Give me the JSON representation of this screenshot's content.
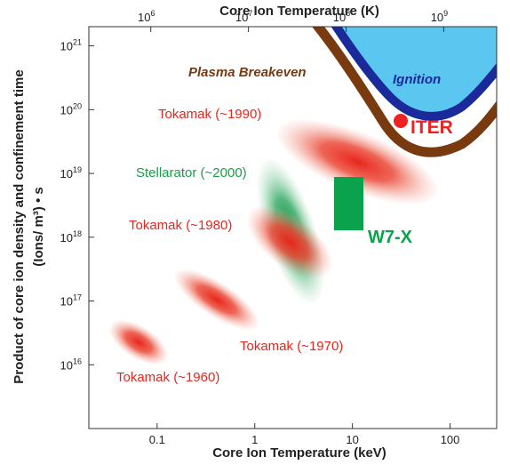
{
  "chart_data": {
    "type": "scatter",
    "title": "",
    "xlabel": "Core Ion Temperature (keV)",
    "x2label": "Core Ion Temperature (K)",
    "ylabel_line1": "Product of core ion density and confinement time",
    "ylabel_line2": "(Ions/ m³) • s",
    "x_scale": "log",
    "y_scale": "log",
    "xlim": [
      0.02,
      300
    ],
    "ylim": [
      1000000000000000.0,
      2e+21
    ],
    "grid": false,
    "x_ticks": [
      {
        "value": 0.1,
        "label": "0.1"
      },
      {
        "value": 1,
        "label": "1"
      },
      {
        "value": 10,
        "label": "10"
      },
      {
        "value": 100,
        "label": "100"
      }
    ],
    "x2_ticks": [
      {
        "value_k": 1000000.0,
        "label_base": "10",
        "label_exp": "6"
      },
      {
        "value_k": 10000000.0,
        "label_base": "10",
        "label_exp": "7"
      },
      {
        "value_k": 100000000.0,
        "label_base": "10",
        "label_exp": "8"
      },
      {
        "value_k": 1000000000.0,
        "label_base": "10",
        "label_exp": "9"
      }
    ],
    "kelvin_per_kev": 11604500,
    "y_ticks": [
      {
        "value": 1e+16,
        "label_base": "10",
        "label_exp": "16"
      },
      {
        "value": 1e+17,
        "label_base": "10",
        "label_exp": "17"
      },
      {
        "value": 1e+18,
        "label_base": "10",
        "label_exp": "18"
      },
      {
        "value": 1e+19,
        "label_base": "10",
        "label_exp": "19"
      },
      {
        "value": 1e+20,
        "label_base": "10",
        "label_exp": "20"
      },
      {
        "value": 1e+21,
        "label_base": "10",
        "label_exp": "21"
      }
    ],
    "regions": [
      {
        "name": "Tokamak (~1960)",
        "color": "#e8261c",
        "center": [
          0.055,
          5e+16
        ],
        "x_range": [
          0.03,
          0.1
        ],
        "y_range": [
          2.5e+16,
          1e+17
        ]
      },
      {
        "name": "Tokamak (~1970)",
        "color": "#e8261c",
        "center": [
          0.45,
          3e+17
        ],
        "x_range": [
          0.15,
          1.4
        ],
        "y_range": [
          8e+16,
          1.5e+18
        ]
      },
      {
        "name": "Tokamak (~1980)",
        "color": "#e8261c",
        "center": [
          2.0,
          2.5e+18
        ],
        "x_range": [
          0.9,
          4.0
        ],
        "y_range": [
          6e+17,
          1.2e+19
        ]
      },
      {
        "name": "Stellarator (~2000)",
        "color": "#1a9e48",
        "center": [
          2.2,
          4e+18
        ],
        "x_range": [
          1.1,
          4.0
        ],
        "y_range": [
          3e+17,
          3e+19
        ]
      },
      {
        "name": "Tokamak (~1990)",
        "color": "#e8261c",
        "center": [
          8.0,
          3e+19
        ],
        "x_range": [
          1.3,
          60
        ],
        "y_range": [
          4e+18,
          1.5e+20
        ]
      }
    ],
    "w7x": {
      "label": "W7-X",
      "color": "#0aa24c",
      "x_range": [
        5.5,
        10.5
      ],
      "y_range": [
        3.5e+18,
        2e+19
      ]
    },
    "iter": {
      "label": "ITER",
      "color": "#ee2222",
      "x": 26,
      "y": 1.25e+20
    },
    "breakeven": {
      "label": "Plasma Breakeven",
      "color": "#7a3a10"
    },
    "ignition": {
      "label": "Ignition",
      "fill": "#5bc6f0",
      "border": "#1b2a9b"
    }
  }
}
